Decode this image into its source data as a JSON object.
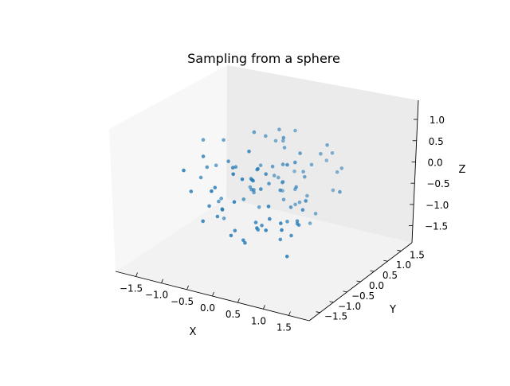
{
  "chart_data": {
    "type": "scatter",
    "projection": "3d",
    "title": "Sampling from a sphere",
    "xlabel": "X",
    "ylabel": "Y",
    "zlabel": "Z",
    "xlim": [
      -1.9,
      1.9
    ],
    "ylim": [
      -1.9,
      1.9
    ],
    "zlim": [
      -1.9,
      1.45
    ],
    "xticks": [
      "−1.5",
      "−1.0",
      "−0.5",
      "0.0",
      "0.5",
      "1.0",
      "1.5"
    ],
    "yticks": [
      "−1.5",
      "−1.0",
      "−0.5",
      "0.0",
      "0.5",
      "1.0",
      "1.5"
    ],
    "zticks": [
      "−1.5",
      "−1.0",
      "−0.5",
      "0.0",
      "0.5",
      "1.0"
    ],
    "grid": false,
    "marker_color": "#1f77b4",
    "pane_colors": {
      "floor": "#f2f2f2",
      "left_wall": "#f7f7f7",
      "back_wall": "#ebebeb"
    },
    "series": [
      {
        "points": [
          [
            -1.02,
            0.27,
            0.74
          ],
          [
            0.06,
            -0.98,
            0.71
          ],
          [
            -0.03,
            -0.59,
            1.21
          ],
          [
            -0.4,
            -1.23,
            0.37
          ],
          [
            -0.11,
            0.72,
            0.8
          ],
          [
            0.03,
            0.89,
            1.03
          ],
          [
            0.56,
            0.13,
            1.0
          ],
          [
            -0.33,
            0.11,
            1.26
          ],
          [
            -0.09,
            0.55,
            1.19
          ],
          [
            0.23,
            0.14,
            1.29
          ],
          [
            0.6,
            -0.38,
            0.97
          ],
          [
            -0.27,
            0.98,
            -0.69
          ],
          [
            -0.65,
            -0.59,
            -0.7
          ],
          [
            -0.94,
            0.05,
            -0.65
          ],
          [
            0.53,
            -0.99,
            -0.46
          ],
          [
            -0.6,
            -0.05,
            0.34
          ],
          [
            -0.71,
            -0.11,
            0.48
          ],
          [
            -0.05,
            -1.06,
            0.12
          ],
          [
            0.95,
            -0.46,
            -0.05
          ],
          [
            0.45,
            0.19,
            0.05
          ],
          [
            0.12,
            -0.17,
            0.21
          ],
          [
            0.49,
            -0.83,
            0.07
          ],
          [
            -0.38,
            0.42,
            0.22
          ],
          [
            0.79,
            1.0,
            0.15
          ],
          [
            -0.28,
            -0.05,
            0.11
          ],
          [
            -0.28,
            0.01,
            -0.18
          ],
          [
            0.05,
            0.46,
            -0.55
          ],
          [
            -0.34,
            0.04,
            -0.21
          ],
          [
            -0.45,
            -0.04,
            -0.46
          ],
          [
            0.8,
            0.64,
            1.04
          ],
          [
            0.25,
            -0.5,
            0.67
          ],
          [
            -0.03,
            0.22,
            0.41
          ],
          [
            -0.95,
            0.16,
            -1.23
          ],
          [
            0.12,
            -0.62,
            -0.58
          ],
          [
            -0.34,
            0.52,
            0.95
          ],
          [
            -0.7,
            -0.34,
            -0.65
          ],
          [
            1.31,
            0.18,
            0.22
          ],
          [
            0.92,
            -1.13,
            -0.25
          ],
          [
            0.19,
            -0.57,
            0.29
          ],
          [
            0.09,
            -0.66,
            0.52
          ],
          [
            -0.03,
            -1.13,
            0.89
          ],
          [
            0.27,
            0.05,
            0.65
          ],
          [
            0.39,
            0.77,
            -1.21
          ],
          [
            0.09,
            0.78,
            -0.43
          ],
          [
            0.5,
            0.63,
            0.43
          ],
          [
            0.61,
            -0.13,
            0.91
          ],
          [
            -0.22,
            -0.19,
            0.23
          ],
          [
            -0.18,
            0.54,
            -0.04
          ],
          [
            0.71,
            -0.23,
            -0.54
          ],
          [
            0.44,
            -0.1,
            -0.71
          ],
          [
            0.43,
            -0.32,
            -1.07
          ],
          [
            -0.03,
            -0.73,
            -1.11
          ],
          [
            -0.82,
            -0.79,
            -0.78
          ],
          [
            -0.41,
            0.24,
            -0.41
          ],
          [
            0.09,
            -0.36,
            -0.8
          ],
          [
            -1.33,
            0.11,
            0.72
          ],
          [
            -0.95,
            -0.55,
            0.75
          ],
          [
            -1.14,
            -0.89,
            0.49
          ],
          [
            0.22,
            0.56,
            -0.67
          ],
          [
            -0.58,
            0.41,
            -0.41
          ],
          [
            0.79,
            -0.72,
            -1.19
          ],
          [
            -0.08,
            -0.7,
            -1.07
          ],
          [
            -0.61,
            -0.49,
            -0.56
          ],
          [
            0.39,
            0.67,
            -0.44
          ],
          [
            0.74,
            0.92,
            0.67
          ],
          [
            -0.25,
            0.71,
            0.76
          ],
          [
            0.26,
            0.64,
            -0.64
          ],
          [
            0.04,
            0.43,
            -0.09
          ],
          [
            0.44,
            -0.34,
            0.23
          ],
          [
            0.04,
            -0.41,
            0.69
          ],
          [
            -1.1,
            -0.16,
            0.22
          ],
          [
            -0.02,
            0.61,
            0.71
          ],
          [
            0.36,
            0.59,
            0.22
          ],
          [
            0.47,
            -0.03,
            -0.36
          ],
          [
            -1.19,
            0.31,
            0.0
          ],
          [
            0.33,
            -0.95,
            -0.49
          ],
          [
            -0.28,
            -0.77,
            -0.98
          ],
          [
            -0.37,
            -0.48,
            -1.03
          ],
          [
            -0.06,
            -0.23,
            -1.03
          ],
          [
            0.73,
            -0.83,
            -0.29
          ],
          [
            -1.26,
            -0.09,
            -0.14
          ],
          [
            -0.1,
            1.09,
            -0.18
          ],
          [
            0.69,
            -0.4,
            -0.84
          ],
          [
            0.62,
            -0.07,
            -0.72
          ],
          [
            0.98,
            -0.41,
            0.17
          ],
          [
            0.51,
            -0.83,
            -0.25
          ],
          [
            0.72,
            -0.19,
            -0.66
          ],
          [
            0.65,
            0.68,
            0.74
          ],
          [
            1.01,
            0.77,
            0.44
          ],
          [
            0.49,
            0.41,
            0.22
          ],
          [
            0.54,
            0.7,
            -0.87
          ],
          [
            0.49,
            1.16,
            0.27
          ],
          [
            0.76,
            0.91,
            -0.29
          ],
          [
            -0.17,
            0.66,
            -0.15
          ],
          [
            -0.85,
            -0.52,
            -0.53
          ],
          [
            -0.17,
            0.82,
            -0.34
          ],
          [
            -0.1,
            -0.19,
            0.51
          ],
          [
            -1.11,
            -0.69,
            -0.15
          ],
          [
            -0.33,
            -0.62,
            0.7
          ],
          [
            -0.64,
            -0.69,
            0.11
          ],
          [
            -0.98,
            0.03,
            -0.73
          ],
          [
            -0.34,
            0.3,
            -0.8
          ]
        ]
      }
    ]
  }
}
